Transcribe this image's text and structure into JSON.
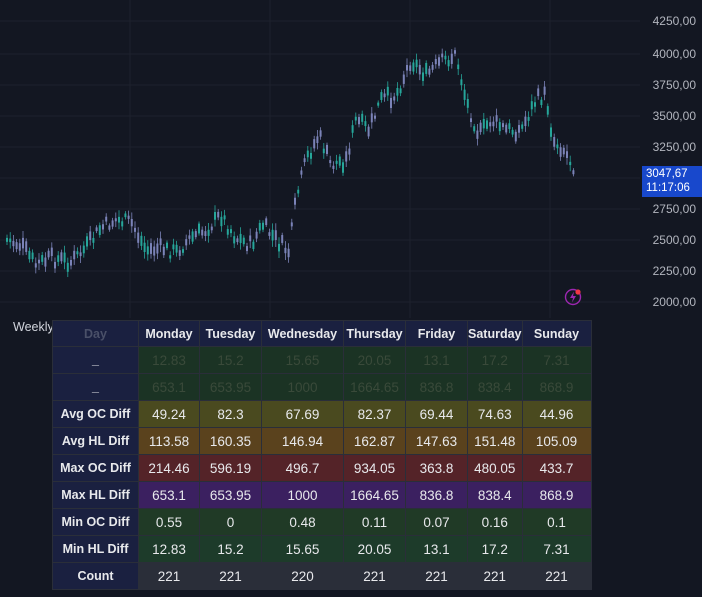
{
  "price_axis": {
    "labels": [
      "4250,00",
      "4000,00",
      "3750,00",
      "3500,00",
      "3250,00",
      "2750,00",
      "2500,00",
      "2250,00",
      "2000,00"
    ],
    "last_price": "3047,67",
    "countdown": "11:17:06",
    "last_price_color": "#1848cc"
  },
  "chart": {
    "candle_color_up": "#26a69a",
    "candle_color_down": "#7b83b8",
    "background": "#131722"
  },
  "icons": {
    "alert": "lightning-alert-icon"
  },
  "table": {
    "title": "Weekly Statistics Table Both",
    "header_first": "Day",
    "days": [
      "Monday",
      "Tuesday",
      "Wednesday",
      "Thursday",
      "Friday",
      "Saturday",
      "Sunday"
    ],
    "rows": [
      {
        "label": "_",
        "values": [
          "12.83",
          "15.2",
          "15.65",
          "20.05",
          "13.1",
          "17.2",
          "7.31"
        ],
        "cls": "r-faded",
        "faded": true
      },
      {
        "label": "_",
        "values": [
          "653.1",
          "653.95",
          "1000",
          "1664.65",
          "836.8",
          "838.4",
          "868.9"
        ],
        "cls": "r-faded",
        "faded": true
      },
      {
        "label": "Avg OC Diff",
        "values": [
          "49.24",
          "82.3",
          "67.69",
          "82.37",
          "69.44",
          "74.63",
          "44.96"
        ],
        "cls": "r-avgoc"
      },
      {
        "label": "Avg HL Diff",
        "values": [
          "113.58",
          "160.35",
          "146.94",
          "162.87",
          "147.63",
          "151.48",
          "105.09"
        ],
        "cls": "r-avghl"
      },
      {
        "label": "Max OC Diff",
        "values": [
          "214.46",
          "596.19",
          "496.7",
          "934.05",
          "363.8",
          "480.05",
          "433.7"
        ],
        "cls": "r-maxoc"
      },
      {
        "label": "Max HL Diff",
        "values": [
          "653.1",
          "653.95",
          "1000",
          "1664.65",
          "836.8",
          "838.4",
          "868.9"
        ],
        "cls": "r-maxhl"
      },
      {
        "label": "Min OC Diff",
        "values": [
          "0.55",
          "0",
          "0.48",
          "0.11",
          "0.07",
          "0.16",
          "0.1"
        ],
        "cls": "r-minoc"
      },
      {
        "label": "Min HL Diff",
        "values": [
          "12.83",
          "15.2",
          "15.65",
          "20.05",
          "13.1",
          "17.2",
          "7.31"
        ],
        "cls": "r-minhl"
      },
      {
        "label": "Count",
        "values": [
          "221",
          "221",
          "220",
          "221",
          "221",
          "221",
          "221"
        ],
        "cls": "r-count"
      }
    ]
  }
}
